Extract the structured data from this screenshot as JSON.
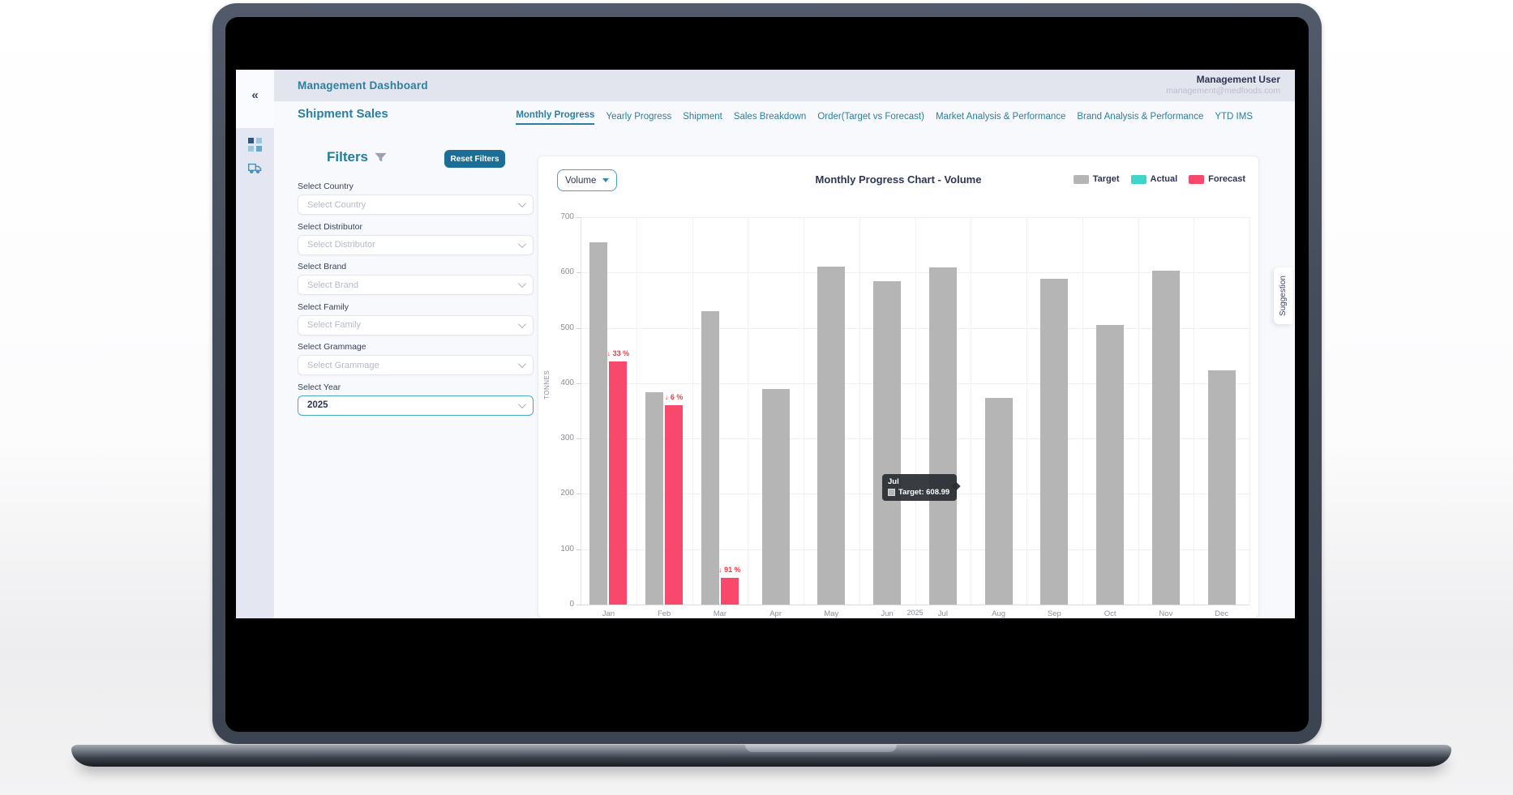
{
  "header": {
    "title": "Management Dashboard"
  },
  "user": {
    "name": "Management User",
    "email": "management@medfoods.com"
  },
  "page": {
    "title": "Shipment Sales"
  },
  "sidebar": {
    "collapse_icon": "«",
    "icons": [
      "dashboard-grid",
      "shipment-truck"
    ]
  },
  "nav": {
    "tabs": [
      {
        "label": "Monthly Progress",
        "active": true
      },
      {
        "label": "Yearly Progress",
        "active": false
      },
      {
        "label": "Shipment",
        "active": false
      },
      {
        "label": "Sales Breakdown",
        "active": false
      },
      {
        "label": "Order(Target vs Forecast)",
        "active": false
      },
      {
        "label": "Market Analysis & Performance",
        "active": false
      },
      {
        "label": "Brand Analysis & Performance",
        "active": false
      },
      {
        "label": "YTD IMS",
        "active": false
      }
    ]
  },
  "filters": {
    "title": "Filters",
    "reset_label": "Reset Filters",
    "fields": [
      {
        "label": "Select Country",
        "placeholder": "Select Country",
        "value": null
      },
      {
        "label": "Select Distributor",
        "placeholder": "Select Distributor",
        "value": null
      },
      {
        "label": "Select Brand",
        "placeholder": "Select Brand",
        "value": null
      },
      {
        "label": "Select Family",
        "placeholder": "Select Family",
        "value": null
      },
      {
        "label": "Select Grammage",
        "placeholder": "Select Grammage",
        "value": null
      },
      {
        "label": "Select Year",
        "placeholder": "Select Year",
        "value": "2025"
      }
    ]
  },
  "chart": {
    "metric_selector": "Volume",
    "title": "Monthly Progress Chart - Volume",
    "ylabel": "TONNES",
    "xlabel": "2025",
    "legend": [
      {
        "label": "Target",
        "color": "#b5b5b5"
      },
      {
        "label": "Actual",
        "color": "#3fd5ca"
      },
      {
        "label": "Forecast",
        "color": "#f8486b"
      }
    ]
  },
  "chart_data": {
    "type": "bar",
    "title": "Monthly Progress Chart - Volume",
    "categories": [
      "Jan",
      "Feb",
      "Mar",
      "Apr",
      "May",
      "Jun",
      "Jul",
      "Aug",
      "Sep",
      "Oct",
      "Nov",
      "Dec"
    ],
    "series": [
      {
        "name": "Target",
        "color": "#b5b5b5",
        "values": [
          655,
          383,
          530,
          390,
          610,
          585,
          608.99,
          374,
          588,
          505,
          604,
          423
        ]
      },
      {
        "name": "Actual",
        "color": "#3fd5ca",
        "values": [
          null,
          null,
          null,
          null,
          null,
          null,
          null,
          null,
          null,
          null,
          null,
          null
        ]
      },
      {
        "name": "Forecast",
        "color": "#f8486b",
        "values": [
          439,
          360,
          48,
          null,
          null,
          null,
          null,
          null,
          null,
          null,
          null,
          null
        ]
      }
    ],
    "pct_change_labels": [
      "↓ 33 %",
      "↓ 6 %",
      "↓ 91 %",
      null,
      null,
      null,
      null,
      null,
      null,
      null,
      null,
      null
    ],
    "down_label_color": "#f43b47",
    "ylabel": "TONNES",
    "xlabel": "2025",
    "ylim": [
      0,
      700
    ],
    "ytick_step": 100,
    "grid": true,
    "legend_position": "top-right"
  },
  "tooltip": {
    "title": "Jul",
    "series": "Target",
    "value": "608.99",
    "text": "Target: 608.99"
  },
  "suggestion_tab": {
    "label": "Suggestion"
  }
}
